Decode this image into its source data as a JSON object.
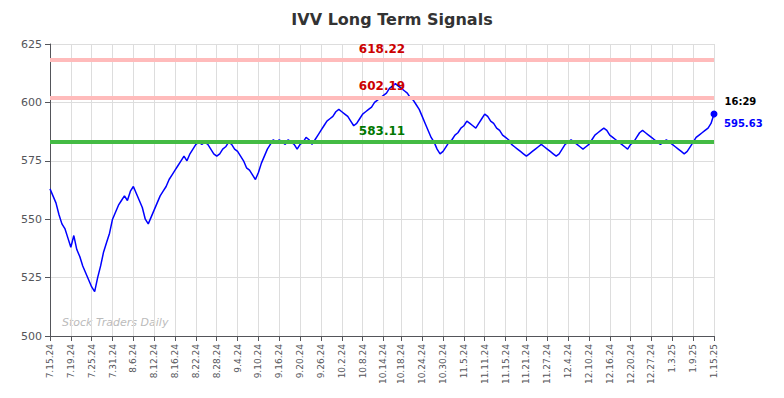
{
  "chart_data": {
    "type": "line",
    "title": "IVV Long Term Signals",
    "color": "blue",
    "grid": true,
    "ylim": [
      500,
      625
    ],
    "yticks": [
      500,
      525,
      550,
      575,
      600,
      625
    ],
    "hlines": [
      {
        "y": 618.22,
        "label": "618.22",
        "color": "#ffbbbb",
        "label_color": "#cc0000"
      },
      {
        "y": 602.19,
        "label": "602.19",
        "color": "#ffbbbb",
        "label_color": "#cc0000"
      },
      {
        "y": 583.11,
        "label": "583.11",
        "color": "#44bb44",
        "label_color": "#007700"
      }
    ],
    "annotations": [
      {
        "text": "16:29",
        "color": "black"
      },
      {
        "text": "595.63",
        "color": "blue"
      }
    ],
    "watermark": {
      "text": "Stock Traders Daily",
      "color": "#bbbbbb"
    },
    "categories": [
      "7.15.24",
      null,
      null,
      null,
      null,
      null,
      null,
      "7.19.24",
      null,
      null,
      null,
      null,
      null,
      null,
      "7.25.24",
      null,
      null,
      null,
      null,
      null,
      null,
      "7.31.24",
      null,
      null,
      null,
      null,
      null,
      null,
      "8.6.24",
      null,
      null,
      null,
      null,
      null,
      null,
      "8.12.24",
      null,
      null,
      null,
      null,
      null,
      null,
      "8.16.24",
      null,
      null,
      null,
      null,
      null,
      null,
      "8.22.24",
      null,
      null,
      null,
      null,
      null,
      null,
      "8.28.24",
      null,
      null,
      null,
      null,
      null,
      null,
      "9.4.24",
      null,
      null,
      null,
      null,
      null,
      null,
      "9.10.24",
      null,
      null,
      null,
      null,
      null,
      null,
      "9.16.24",
      null,
      null,
      null,
      null,
      null,
      null,
      "9.20.24",
      null,
      null,
      null,
      null,
      null,
      null,
      "9.26.24",
      null,
      null,
      null,
      null,
      null,
      null,
      "10.2.24",
      null,
      null,
      null,
      null,
      null,
      null,
      "10.8.24",
      null,
      null,
      null,
      null,
      null,
      null,
      "10.14.24",
      null,
      null,
      null,
      null,
      null,
      "10.18.24",
      null,
      null,
      null,
      null,
      null,
      null,
      "10.24.24",
      null,
      null,
      null,
      null,
      null,
      null,
      "10.30.24",
      null,
      null,
      null,
      null,
      null,
      null,
      "11.5.24",
      null,
      null,
      null,
      null,
      null,
      null,
      "11.11.24",
      null,
      null,
      null,
      null,
      null,
      null,
      "11.15.24",
      null,
      null,
      null,
      null,
      null,
      null,
      "11.21.24",
      null,
      null,
      null,
      null,
      null,
      null,
      "11.27.24",
      null,
      null,
      null,
      null,
      null,
      null,
      "12.4.24",
      null,
      null,
      null,
      null,
      null,
      null,
      "12.10.24",
      null,
      null,
      null,
      null,
      null,
      null,
      "12.16.24",
      null,
      null,
      null,
      null,
      null,
      null,
      "12.20.24",
      null,
      null,
      null,
      null,
      null,
      null,
      "12.27.24",
      null,
      null,
      null,
      null,
      null,
      null,
      "1.3.25",
      null,
      null,
      null,
      null,
      null,
      null,
      "1.9.25",
      null,
      null,
      null,
      null,
      null,
      null,
      "1.15.25"
    ],
    "values": [
      563,
      560,
      557,
      552,
      548,
      546,
      542,
      538,
      543,
      537,
      534,
      530,
      527,
      524,
      521,
      519,
      525,
      530,
      536,
      540,
      544,
      550,
      553,
      556,
      558,
      560,
      558,
      562,
      564,
      561,
      558,
      555,
      550,
      548,
      551,
      554,
      557,
      560,
      562,
      564,
      567,
      569,
      571,
      573,
      575,
      577,
      575,
      578,
      580,
      582,
      583,
      582,
      583,
      582,
      580,
      578,
      577,
      578,
      580,
      581,
      583,
      582,
      580,
      579,
      577,
      575,
      572,
      571,
      569,
      567,
      570,
      574,
      577,
      580,
      582,
      584,
      583,
      584,
      583,
      582,
      584,
      583,
      582,
      580,
      582,
      583,
      585,
      584,
      582,
      584,
      586,
      588,
      590,
      592,
      593,
      594,
      596,
      597,
      596,
      595,
      594,
      592,
      590,
      591,
      593,
      595,
      596,
      597,
      598,
      600,
      601,
      602,
      603,
      604,
      606,
      607,
      608,
      607,
      606,
      605,
      604,
      602,
      601,
      599,
      597,
      594,
      591,
      588,
      585,
      583,
      580,
      578,
      579,
      581,
      583,
      584,
      586,
      587,
      589,
      590,
      592,
      591,
      590,
      589,
      591,
      593,
      595,
      594,
      592,
      591,
      589,
      588,
      586,
      585,
      584,
      582,
      581,
      580,
      579,
      578,
      577,
      578,
      579,
      580,
      581,
      582,
      581,
      580,
      579,
      578,
      577,
      578,
      580,
      582,
      583,
      584,
      583,
      582,
      581,
      580,
      581,
      582,
      584,
      586,
      587,
      588,
      589,
      588,
      586,
      585,
      584,
      583,
      582,
      581,
      580,
      582,
      583,
      585,
      587,
      588,
      587,
      586,
      585,
      584,
      583,
      582,
      583,
      584,
      583,
      582,
      581,
      580,
      579,
      578,
      579,
      581,
      583,
      585,
      586,
      587,
      588,
      589,
      591,
      595
    ]
  }
}
